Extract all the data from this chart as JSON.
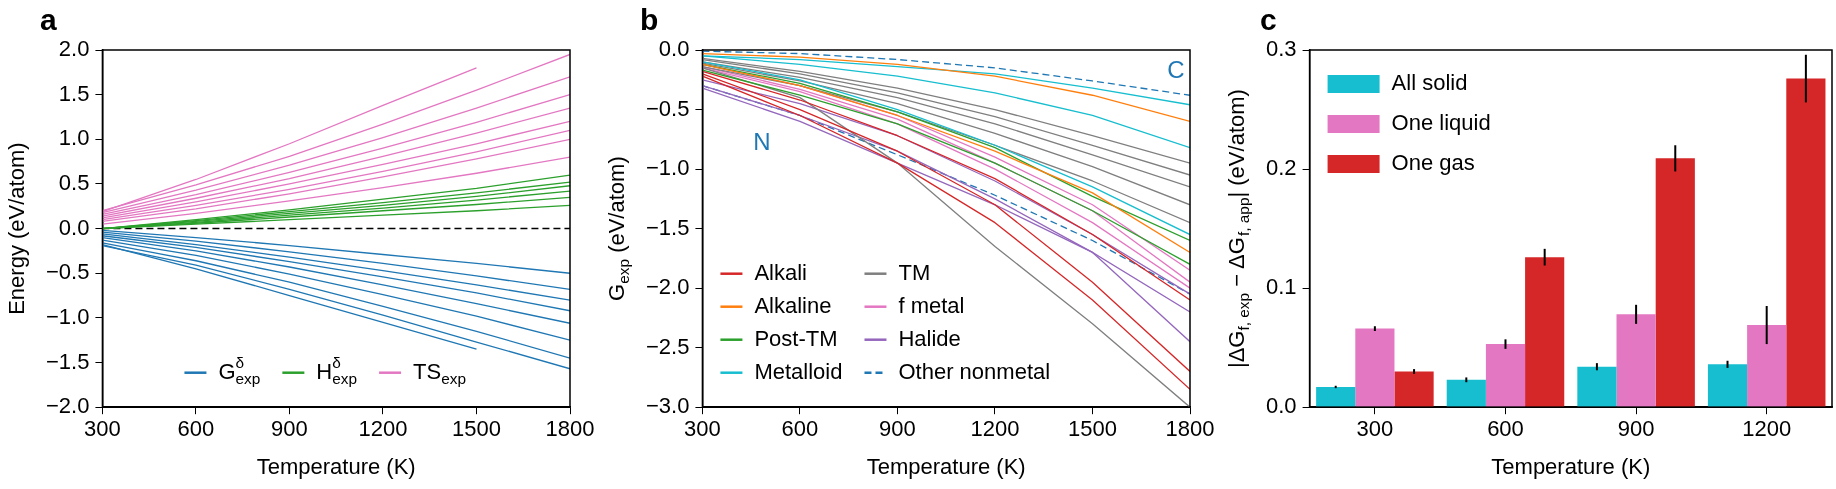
{
  "chart_data": [
    {
      "type": "line",
      "title": "a",
      "xlabel": "Temperature (K)",
      "ylabel": "Energy (eV/atom)",
      "x": [
        300,
        600,
        900,
        1200,
        1500,
        1800
      ],
      "xlim": [
        300,
        1800
      ],
      "xticks": [
        300,
        600,
        900,
        1200,
        1500,
        1800
      ],
      "ylim": [
        -2,
        2
      ],
      "yticks": [
        {
          "value": -2,
          "label": "−2.0"
        },
        {
          "value": -1.5,
          "label": "−1.5"
        },
        {
          "value": -1,
          "label": "−1.0"
        },
        {
          "value": -0.5,
          "label": "−0.5"
        },
        {
          "value": 0,
          "label": "0.0"
        },
        {
          "value": 0.5,
          "label": "0.5"
        },
        {
          "value": 1,
          "label": "1.0"
        },
        {
          "value": 1.5,
          "label": "1.5"
        },
        {
          "value": 2,
          "label": "2.0"
        }
      ],
      "grid": false,
      "legend": "bottom",
      "marker": "none",
      "line_style": "solid",
      "ref_lines": [
        {
          "axis": "y",
          "value": 0,
          "color": "#000000",
          "line_style": "dashed"
        }
      ],
      "series": [
        {
          "name": "G$^{δ}$$_{exp}$",
          "color": "#1f77b4",
          "values": [
            -0.02,
            -0.1,
            -0.19,
            -0.29,
            -0.39,
            -0.5
          ]
        },
        {
          "color": "#1f77b4",
          "values": [
            -0.04,
            -0.14,
            -0.26,
            -0.39,
            -0.53,
            -0.68
          ]
        },
        {
          "color": "#1f77b4",
          "values": [
            -0.06,
            -0.18,
            -0.32,
            -0.47,
            -0.63,
            -0.8
          ]
        },
        {
          "color": "#1f77b4",
          "values": [
            -0.08,
            -0.21,
            -0.37,
            -0.54,
            -0.72,
            -0.92
          ]
        },
        {
          "color": "#1f77b4",
          "values": [
            -0.1,
            -0.25,
            -0.43,
            -0.63,
            -0.84,
            -1.06
          ]
        },
        {
          "color": "#1f77b4",
          "values": [
            -0.13,
            -0.3,
            -0.51,
            -0.74,
            -0.98,
            -1.25
          ]
        },
        {
          "color": "#1f77b4",
          "values": [
            -0.16,
            -0.36,
            -0.6,
            -0.87,
            -1.15,
            -1.45
          ]
        },
        {
          "color": "#1f77b4",
          "values": [
            -0.19,
            -0.41,
            -0.68,
            -0.97,
            -1.27,
            -1.57
          ]
        },
        {
          "color": "#1f77b4",
          "x": [
            300,
            600,
            900,
            1200,
            1500
          ],
          "values": [
            -0.18,
            -0.45,
            -0.75,
            -1.05,
            -1.35
          ]
        },
        {
          "name": "H$^{δ}$$_{exp}$",
          "color": "#2ca02c",
          "values": [
            0,
            0.05,
            0.1,
            0.15,
            0.2,
            0.26
          ]
        },
        {
          "color": "#2ca02c",
          "values": [
            0,
            0.06,
            0.13,
            0.2,
            0.27,
            0.35
          ]
        },
        {
          "color": "#2ca02c",
          "values": [
            0,
            0.07,
            0.15,
            0.23,
            0.32,
            0.42
          ]
        },
        {
          "color": "#2ca02c",
          "values": [
            0,
            0.08,
            0.17,
            0.26,
            0.36,
            0.48
          ]
        },
        {
          "color": "#2ca02c",
          "values": [
            0,
            0.09,
            0.19,
            0.29,
            0.4,
            0.52
          ]
        },
        {
          "color": "#2ca02c",
          "values": [
            0,
            0.1,
            0.21,
            0.33,
            0.45,
            0.6
          ]
        },
        {
          "name": "TS$_{exp}$",
          "color": "#e377c2",
          "values": [
            0.05,
            0.17,
            0.31,
            0.46,
            0.62,
            0.8
          ]
        },
        {
          "color": "#e377c2",
          "values": [
            0.08,
            0.22,
            0.39,
            0.58,
            0.78,
            1.0
          ]
        },
        {
          "color": "#e377c2",
          "values": [
            0.1,
            0.26,
            0.44,
            0.64,
            0.86,
            1.1
          ]
        },
        {
          "color": "#e377c2",
          "values": [
            0.12,
            0.3,
            0.5,
            0.72,
            0.95,
            1.2
          ]
        },
        {
          "color": "#e377c2",
          "values": [
            0.14,
            0.34,
            0.56,
            0.81,
            1.07,
            1.35
          ]
        },
        {
          "color": "#e377c2",
          "values": [
            0.16,
            0.38,
            0.63,
            0.9,
            1.19,
            1.5
          ]
        },
        {
          "color": "#e377c2",
          "values": [
            0.18,
            0.43,
            0.71,
            1.02,
            1.35,
            1.7
          ]
        },
        {
          "color": "#e377c2",
          "values": [
            0.2,
            0.49,
            0.81,
            1.17,
            1.55,
            1.95
          ]
        },
        {
          "color": "#e377c2",
          "x": [
            300,
            600,
            900,
            1200,
            1500
          ],
          "values": [
            0.19,
            0.55,
            0.95,
            1.38,
            1.8
          ]
        }
      ]
    },
    {
      "type": "line",
      "title": "b",
      "xlabel": "Temperature (K)",
      "ylabel": "G$_{exp}$ (eV/atom)",
      "x": [
        300,
        600,
        900,
        1200,
        1500,
        1800
      ],
      "xlim": [
        300,
        1800
      ],
      "xticks": [
        300,
        600,
        900,
        1200,
        1500,
        1800
      ],
      "ylim": [
        -3,
        0
      ],
      "yticks": [
        {
          "value": -3,
          "label": "−3.0"
        },
        {
          "value": -2.5,
          "label": "−2.5"
        },
        {
          "value": -2,
          "label": "−2.0"
        },
        {
          "value": -1.5,
          "label": "−1.5"
        },
        {
          "value": -1,
          "label": "−1.0"
        },
        {
          "value": -0.5,
          "label": "−0.5"
        },
        {
          "value": 0,
          "label": "0.0"
        }
      ],
      "grid": false,
      "legend": "bottom left",
      "marker": "none",
      "line_style": "solid",
      "annotations": [
        {
          "text": "C",
          "x": 1800,
          "y": -0.38
        },
        {
          "text": "N",
          "x": 600,
          "y": -0.55
        }
      ],
      "series": [
        {
          "name": "Alkali",
          "color": "#d62728",
          "values": [
            -0.22,
            -0.55,
            -0.95,
            -1.45,
            -2.1,
            -2.85
          ]
        },
        {
          "color": "#d62728",
          "values": [
            -0.2,
            -0.5,
            -0.85,
            -1.3,
            -1.95,
            -2.7
          ]
        },
        {
          "color": "#d62728",
          "values": [
            -0.18,
            -0.42,
            -0.72,
            -1.08,
            -1.55,
            -2.1
          ]
        },
        {
          "name": "Alkaline",
          "color": "#ff7f0e",
          "values": [
            -0.03,
            -0.06,
            -0.12,
            -0.22,
            -0.38,
            -0.6
          ]
        },
        {
          "color": "#ff7f0e",
          "values": [
            -0.12,
            -0.3,
            -0.55,
            -0.85,
            -1.2,
            -1.7
          ]
        },
        {
          "name": "Post-TM",
          "color": "#2ca02c",
          "values": [
            -0.17,
            -0.38,
            -0.62,
            -0.95,
            -1.35,
            -1.8
          ]
        },
        {
          "color": "#2ca02c",
          "values": [
            -0.12,
            -0.28,
            -0.52,
            -0.82,
            -1.23,
            -1.6
          ]
        },
        {
          "name": "Metalloid",
          "color": "#17becf",
          "values": [
            -0.05,
            -0.08,
            -0.14,
            -0.2,
            -0.32,
            -0.46
          ]
        },
        {
          "color": "#17becf",
          "values": [
            -0.05,
            -0.12,
            -0.22,
            -0.36,
            -0.55,
            -0.82
          ]
        },
        {
          "color": "#17becf",
          "values": [
            -0.1,
            -0.25,
            -0.5,
            -0.8,
            -1.15,
            -1.55
          ]
        },
        {
          "name": "TM",
          "color": "#7f7f7f",
          "values": [
            -0.07,
            -0.18,
            -0.32,
            -0.5,
            -0.72,
            -0.95
          ]
        },
        {
          "color": "#7f7f7f",
          "values": [
            -0.08,
            -0.2,
            -0.36,
            -0.56,
            -0.8,
            -1.05
          ]
        },
        {
          "color": "#7f7f7f",
          "values": [
            -0.1,
            -0.23,
            -0.4,
            -0.62,
            -0.88,
            -1.15
          ]
        },
        {
          "color": "#7f7f7f",
          "values": [
            -0.11,
            -0.26,
            -0.45,
            -0.7,
            -0.98,
            -1.3
          ]
        },
        {
          "color": "#7f7f7f",
          "values": [
            -0.14,
            -0.3,
            -0.52,
            -0.8,
            -1.1,
            -1.45
          ]
        },
        {
          "color": "#7f7f7f",
          "values": [
            -0.15,
            -0.4,
            -0.95,
            -1.65,
            -2.3,
            -3.0
          ]
        },
        {
          "name": "f metal",
          "color": "#e377c2",
          "values": [
            -0.12,
            -0.3,
            -0.55,
            -0.9,
            -1.3,
            -1.85
          ]
        },
        {
          "color": "#e377c2",
          "values": [
            -0.15,
            -0.35,
            -0.62,
            -1.0,
            -1.45,
            -2.0
          ]
        },
        {
          "color": "#e377c2",
          "values": [
            -0.14,
            -0.33,
            -0.58,
            -0.95,
            -1.35,
            -1.95
          ]
        },
        {
          "name": "Halide",
          "color": "#9467bd",
          "values": [
            -0.32,
            -0.6,
            -0.95,
            -1.3,
            -1.7,
            -2.2
          ]
        },
        {
          "color": "#9467bd",
          "values": [
            -0.3,
            -0.55,
            -0.85,
            -1.25,
            -1.7,
            -2.45
          ]
        },
        {
          "color": "#9467bd",
          "values": [
            -0.25,
            -0.45,
            -0.72,
            -1.1,
            -1.55,
            -2.05
          ]
        },
        {
          "name": "Other nonmetal",
          "color": "#1f77b4",
          "line_style": "dashed",
          "values": [
            -0.01,
            -0.03,
            -0.08,
            -0.15,
            -0.26,
            -0.38
          ]
        },
        {
          "color": "#1f77b4",
          "line_style": "dashed",
          "values": [
            -0.3,
            -0.55,
            -0.88,
            -1.22,
            -1.6,
            -2.05
          ]
        }
      ]
    },
    {
      "type": "bar",
      "title": "c",
      "xlabel": "Temperature (K)",
      "ylabel": "|ΔG$_{f, exp}$ − ΔG$_{f, app}$| (eV/atom)",
      "categories": [
        "300",
        "600",
        "900",
        "1200"
      ],
      "ylim": [
        0,
        0.3
      ],
      "yticks": [
        {
          "value": 0,
          "label": "0.0"
        },
        {
          "value": 0.1,
          "label": "0.1"
        },
        {
          "value": 0.2,
          "label": "0.2"
        },
        {
          "value": 0.3,
          "label": "0.3"
        }
      ],
      "grid": false,
      "legend": "top left",
      "series": [
        {
          "name": "All solid",
          "color": "#17becf",
          "values": [
            0.017,
            0.023,
            0.034,
            0.036
          ],
          "errors": [
            0.001,
            0.002,
            0.003,
            0.003
          ]
        },
        {
          "name": "One liquid",
          "color": "#e377c2",
          "values": [
            0.066,
            0.053,
            0.078,
            0.069
          ],
          "errors": [
            0.002,
            0.004,
            0.008,
            0.016
          ]
        },
        {
          "name": "One gas",
          "color": "#d62728",
          "values": [
            0.03,
            0.126,
            0.209,
            0.276
          ],
          "errors": [
            0.002,
            0.007,
            0.011,
            0.02
          ]
        }
      ]
    }
  ]
}
